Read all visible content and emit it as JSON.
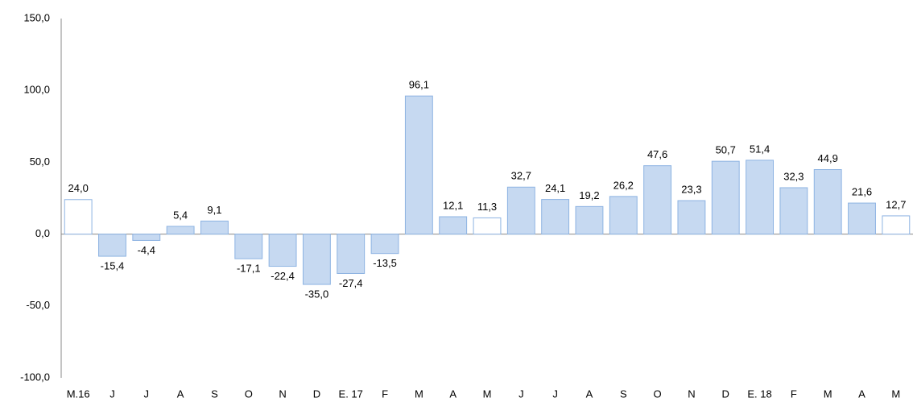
{
  "chart_data": {
    "type": "bar",
    "categories": [
      "M.16",
      "J",
      "J",
      "A",
      "S",
      "O",
      "N",
      "D",
      "E. 17",
      "F",
      "M",
      "A",
      "M",
      "J",
      "J",
      "A",
      "S",
      "O",
      "N",
      "D",
      "E. 18",
      "F",
      "M",
      "A",
      "M"
    ],
    "values": [
      24.0,
      -15.4,
      -4.4,
      5.4,
      9.1,
      -17.1,
      -22.4,
      -35.0,
      -27.4,
      -13.5,
      96.1,
      12.1,
      11.3,
      32.7,
      24.1,
      19.2,
      26.2,
      47.6,
      23.3,
      50.7,
      51.4,
      32.3,
      44.9,
      21.6,
      12.7
    ],
    "value_labels": [
      "24,0",
      "-15,4",
      "-4,4",
      "5,4",
      "9,1",
      "-17,1",
      "-22,4",
      "-35,0",
      "-27,4",
      "-13,5",
      "96,1",
      "12,1",
      "11,3",
      "32,7",
      "24,1",
      "19,2",
      "26,2",
      "47,6",
      "23,3",
      "50,7",
      "51,4",
      "32,3",
      "44,9",
      "21,6",
      "12,7"
    ],
    "colors": [
      "#ffffff",
      "#c6d9f1",
      "#c6d9f1",
      "#c6d9f1",
      "#c6d9f1",
      "#c6d9f1",
      "#c6d9f1",
      "#c6d9f1",
      "#c6d9f1",
      "#c6d9f1",
      "#c6d9f1",
      "#c6d9f1",
      "#ffffff",
      "#c6d9f1",
      "#c6d9f1",
      "#c6d9f1",
      "#c6d9f1",
      "#c6d9f1",
      "#c6d9f1",
      "#c6d9f1",
      "#c6d9f1",
      "#c6d9f1",
      "#c6d9f1",
      "#c6d9f1",
      "#ffffff"
    ],
    "edge_color": "#8db3e2",
    "ylim": [
      -100,
      150
    ],
    "yticks": [
      {
        "value": -100,
        "label": "-100,0"
      },
      {
        "value": -50,
        "label": "-50,0"
      },
      {
        "value": 0,
        "label": "0,0"
      },
      {
        "value": 50,
        "label": "50,0"
      },
      {
        "value": 100,
        "label": "100,0"
      },
      {
        "value": 150,
        "label": "150,0"
      }
    ],
    "grid": false
  }
}
